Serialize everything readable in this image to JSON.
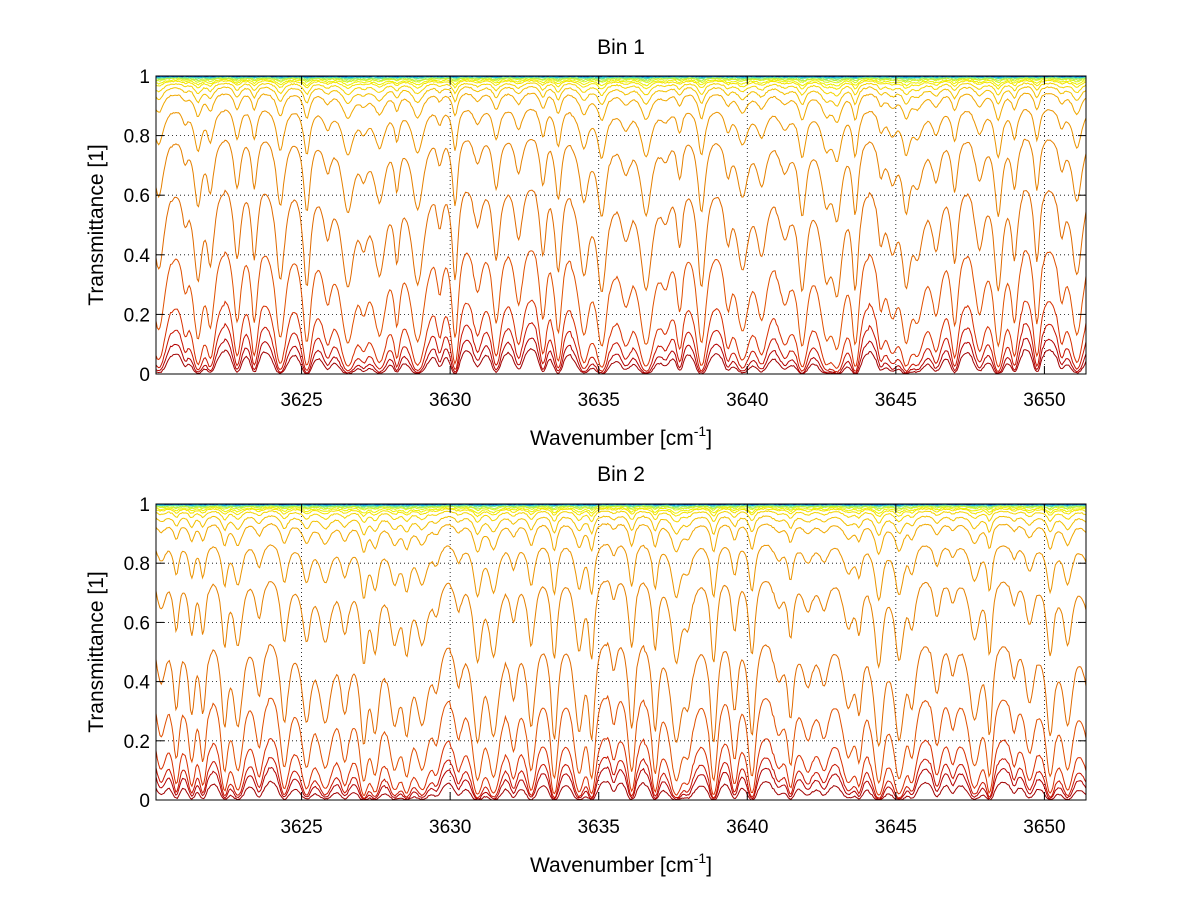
{
  "chart_data": [
    {
      "type": "line",
      "title": "Bin 1",
      "xlabel": {
        "main": "Wavenumber [cm",
        "sup": "-1",
        "close": "]"
      },
      "ylabel": "Transmittance [1]",
      "xlim": [
        3620.1,
        3651.4
      ],
      "ylim": [
        0,
        1
      ],
      "xticks": [
        3625,
        3630,
        3635,
        3640,
        3645,
        3650
      ],
      "yticks": [
        0,
        0.2,
        0.4,
        0.6,
        0.8,
        1
      ],
      "ytick_labels": [
        "0",
        "0.2",
        "0.4",
        "0.6",
        "0.8",
        "1"
      ],
      "grid": true,
      "legend": "none",
      "series_count": 22,
      "colormap": "jet (red at low transmittance, orange, yellow, cyan, blue near 1)",
      "series_baselines": [
        0.002,
        0.005,
        0.012,
        0.03,
        0.11,
        0.3,
        0.55,
        0.74,
        0.86,
        0.91,
        0.94,
        0.96,
        0.97,
        0.98,
        0.985,
        0.99,
        0.993,
        0.995,
        0.997,
        0.998,
        0.999,
        0.9995
      ]
    },
    {
      "type": "line",
      "title": "Bin 2",
      "xlabel": {
        "main": "Wavenumber [cm",
        "sup": "-1",
        "close": "]"
      },
      "ylabel": "Transmittance [1]",
      "xlim": [
        3620.1,
        3651.4
      ],
      "ylim": [
        0,
        1
      ],
      "xticks": [
        3625,
        3630,
        3635,
        3640,
        3645,
        3650
      ],
      "yticks": [
        0,
        0.2,
        0.4,
        0.6,
        0.8,
        1
      ],
      "ytick_labels": [
        "0",
        "0.2",
        "0.4",
        "0.6",
        "0.8",
        "1"
      ],
      "grid": true,
      "legend": "none",
      "series_count": 22,
      "colormap": "jet (red at low transmittance, orange, yellow, cyan, blue near 1)",
      "series_baselines": [
        0.001,
        0.004,
        0.008,
        0.02,
        0.07,
        0.2,
        0.47,
        0.69,
        0.84,
        0.9,
        0.94,
        0.96,
        0.97,
        0.98,
        0.985,
        0.99,
        0.993,
        0.995,
        0.997,
        0.998,
        0.999,
        0.9995
      ]
    }
  ],
  "colors": {
    "series": [
      "#a00000",
      "#b40000",
      "#c81400",
      "#d83000",
      "#e05000",
      "#e06a00",
      "#e58000",
      "#eb9400",
      "#f0a800",
      "#f2c000",
      "#f4d400",
      "#f4e400",
      "#eef000",
      "#d8f220",
      "#b8f040",
      "#90ec70",
      "#60e0a0",
      "#30d0d0",
      "#10b4e8",
      "#0090e8",
      "#0060d0",
      "#0030b0"
    ],
    "grid": "#000000",
    "axis": "#000000"
  }
}
